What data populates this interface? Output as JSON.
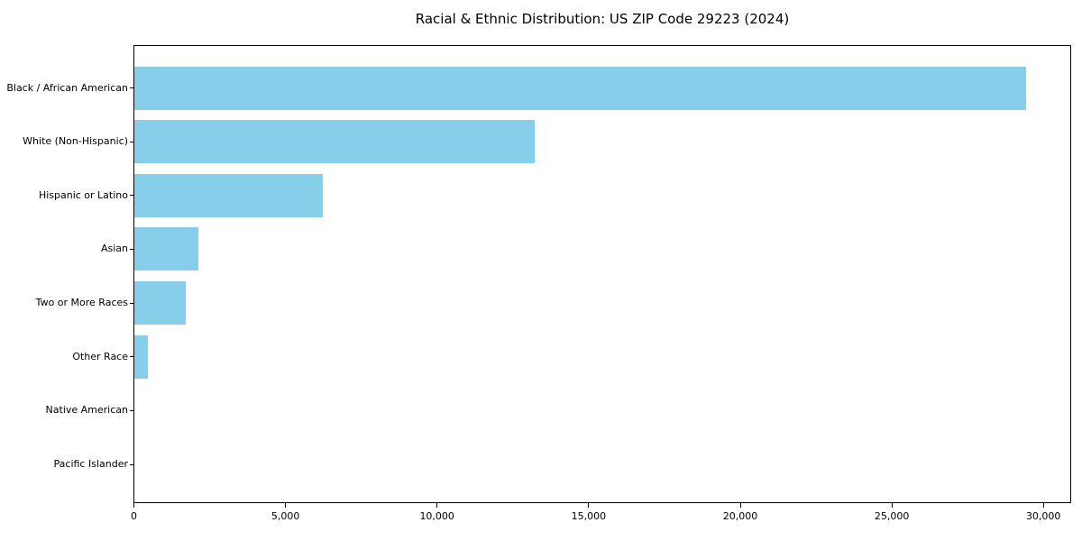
{
  "title": "Racial & Ethnic Distribution: US ZIP Code 29223 (2024)",
  "chart_data": {
    "type": "bar",
    "orientation": "horizontal",
    "title": "Racial & Ethnic Distribution: US ZIP Code 29223 (2024)",
    "xlabel": "",
    "ylabel": "",
    "categories": [
      "Black / African American",
      "White (Non-Hispanic)",
      "Hispanic or Latino",
      "Asian",
      "Two or More Races",
      "Other Race",
      "Native American",
      "Pacific Islander"
    ],
    "values": [
      29400,
      13200,
      6200,
      2100,
      1700,
      450,
      0,
      0
    ],
    "xlim": [
      0,
      30870
    ],
    "x_ticks": [
      0,
      5000,
      10000,
      15000,
      20000,
      25000,
      30000
    ],
    "x_tick_labels": [
      "0",
      "5,000",
      "10,000",
      "15,000",
      "20,000",
      "25,000",
      "30,000"
    ],
    "bar_color": "#87CEEB",
    "grid": false,
    "legend": false,
    "background_color": "#ffffff",
    "spine_color": "#000000"
  }
}
